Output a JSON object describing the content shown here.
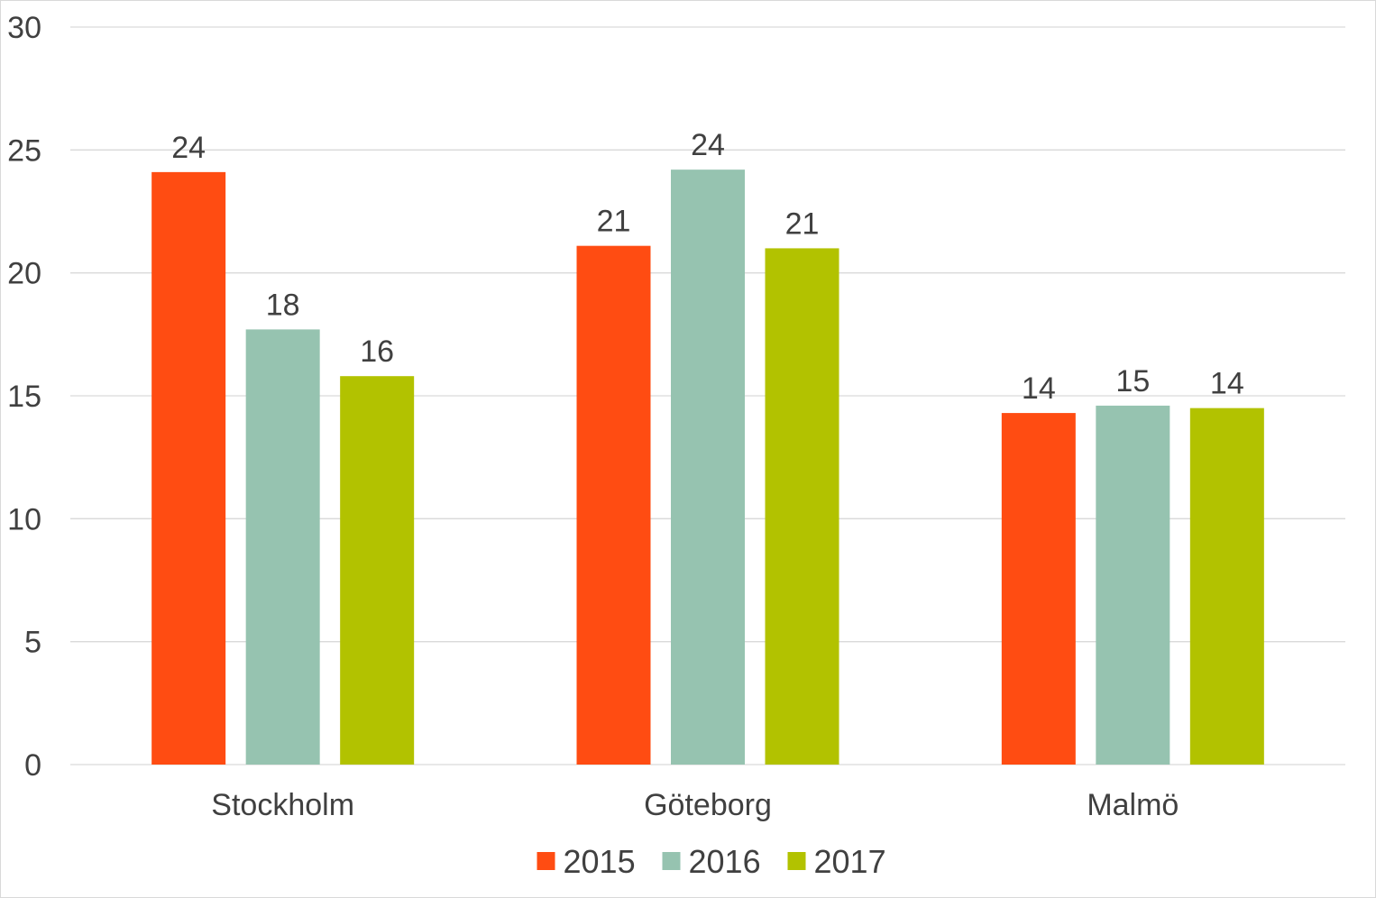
{
  "chart_data": {
    "type": "bar",
    "categories": [
      "Stockholm",
      "Göteborg",
      "Malmö"
    ],
    "series": [
      {
        "name": "2015",
        "color": "#FF4C12",
        "values": [
          24,
          21,
          14
        ],
        "raw_values": [
          24.1,
          21.1,
          14.3
        ]
      },
      {
        "name": "2016",
        "color": "#96C3B0",
        "values": [
          18,
          24,
          15
        ],
        "raw_values": [
          17.7,
          24.2,
          14.6
        ]
      },
      {
        "name": "2017",
        "color": "#B2C200",
        "values": [
          16,
          21,
          14
        ],
        "raw_values": [
          15.8,
          21.0,
          14.5
        ]
      }
    ],
    "title": "",
    "xlabel": "",
    "ylabel": "",
    "ylim": [
      0,
      30
    ],
    "yticks": [
      "0",
      "5",
      "10",
      "15",
      "20",
      "25",
      "30"
    ],
    "grid": true,
    "legend_position": "bottom",
    "gridline_color": "#d9d9d9"
  }
}
